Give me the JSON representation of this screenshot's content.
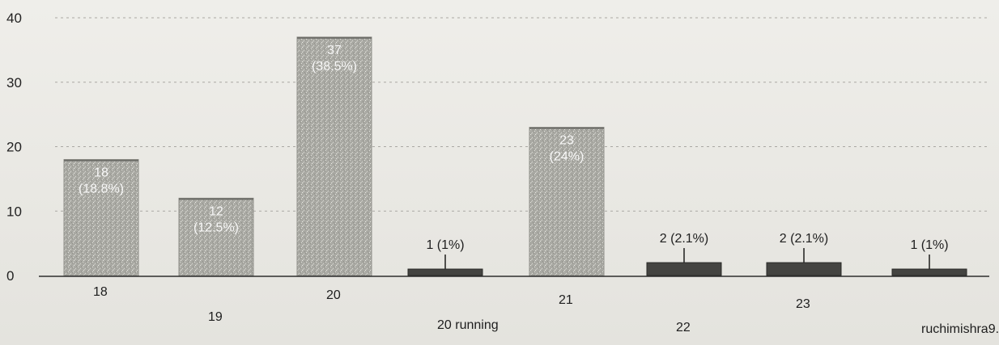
{
  "chart_data": {
    "type": "bar",
    "title": "",
    "xlabel": "",
    "ylabel": "",
    "ylim": [
      0,
      40
    ],
    "yticks": [
      0,
      10,
      20,
      30,
      40
    ],
    "grid": true,
    "categories": [
      "18",
      "19",
      "20",
      "20 running",
      "21",
      "22",
      "23",
      "ruchimishra9..."
    ],
    "values": [
      18,
      12,
      37,
      1,
      23,
      2,
      2,
      1
    ],
    "labels": [
      "18 (18.8%)",
      "12 (12.5%)",
      "37 (38.5%)",
      "1 (1%)",
      "23 (24%)",
      "2 (2.1%)",
      "2 (2.1%)",
      "1 (1%)"
    ],
    "colors": {
      "bar": "#a2a29c",
      "small_bar": "#444441",
      "axis": "#2e2e2e",
      "grid": "#a9a8a3"
    }
  }
}
